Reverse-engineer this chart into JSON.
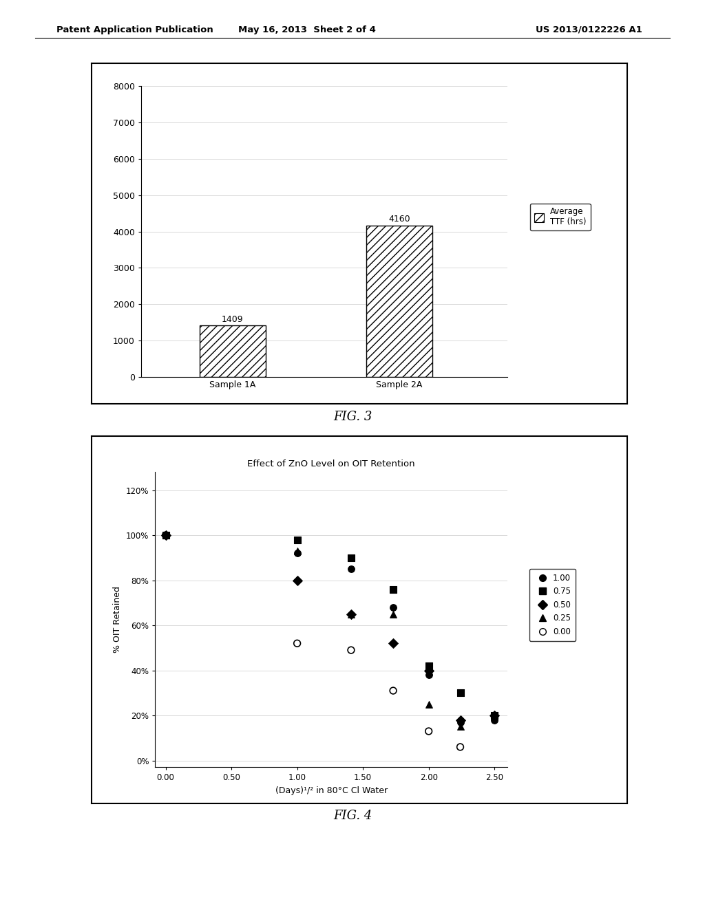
{
  "header_left": "Patent Application Publication",
  "header_center": "May 16, 2013  Sheet 2 of 4",
  "header_right": "US 2013/0122226 A1",
  "fig3": {
    "categories": [
      "Sample 1A",
      "Sample 2A"
    ],
    "values": [
      1409,
      4160
    ],
    "ylim": [
      0,
      8000
    ],
    "yticks": [
      0,
      1000,
      2000,
      3000,
      4000,
      5000,
      6000,
      7000,
      8000
    ],
    "legend_label": "Average\nTTF (hrs)",
    "bar_hatch": "///",
    "bar_facecolor": "white",
    "bar_edgecolor": "black",
    "caption": "FIG. 3"
  },
  "fig4": {
    "title": "Effect of ZnO Level on OIT Retention",
    "xlabel": "(Days)¹/² in 80°C Cl Water",
    "ylabel": "% OIT Retained",
    "xlim": [
      0.0,
      2.5
    ],
    "ylim": [
      0.0,
      1.2
    ],
    "xticks": [
      0.0,
      0.5,
      1.0,
      1.5,
      2.0,
      2.5
    ],
    "yticks": [
      0.0,
      0.2,
      0.4,
      0.6,
      0.8,
      1.0,
      1.2
    ],
    "ytick_labels": [
      "0%",
      "20%",
      "40%",
      "60%",
      "80%",
      "100%",
      "120%"
    ],
    "xtick_labels": [
      "0.00",
      "0.50",
      "1.00",
      "1.50",
      "2.00",
      "2.50"
    ],
    "caption": "FIG. 4",
    "series": [
      {
        "label": "1.00",
        "marker": "o",
        "fillstyle": "full",
        "x": [
          0.0,
          1.0,
          1.41,
          1.73,
          2.0,
          2.24,
          2.5
        ],
        "y": [
          1.0,
          0.92,
          0.85,
          0.68,
          0.38,
          0.17,
          0.18
        ]
      },
      {
        "label": "0.75",
        "marker": "s",
        "fillstyle": "full",
        "x": [
          0.0,
          1.0,
          1.41,
          1.73,
          2.0,
          2.24,
          2.5
        ],
        "y": [
          1.0,
          0.98,
          0.9,
          0.76,
          0.42,
          0.3,
          0.2
        ]
      },
      {
        "label": "0.50",
        "marker": "D",
        "fillstyle": "full",
        "x": [
          0.0,
          1.0,
          1.41,
          1.73,
          2.0,
          2.24,
          2.5
        ],
        "y": [
          1.0,
          0.8,
          0.65,
          0.52,
          0.4,
          0.18,
          0.2
        ]
      },
      {
        "label": "0.25",
        "marker": "^",
        "fillstyle": "full",
        "x": [
          0.0,
          1.0,
          1.41,
          1.73,
          2.0,
          2.24,
          2.5
        ],
        "y": [
          1.0,
          0.93,
          0.65,
          0.65,
          0.25,
          0.15,
          0.2
        ]
      },
      {
        "label": "0.00",
        "marker": "o",
        "fillstyle": "none",
        "x": [
          0.0,
          1.0,
          1.41,
          1.73,
          2.0,
          2.24
        ],
        "y": [
          1.0,
          0.52,
          0.49,
          0.31,
          0.13,
          0.06
        ]
      }
    ]
  },
  "page_bg": "#ffffff",
  "chart_bg": "#ffffff"
}
